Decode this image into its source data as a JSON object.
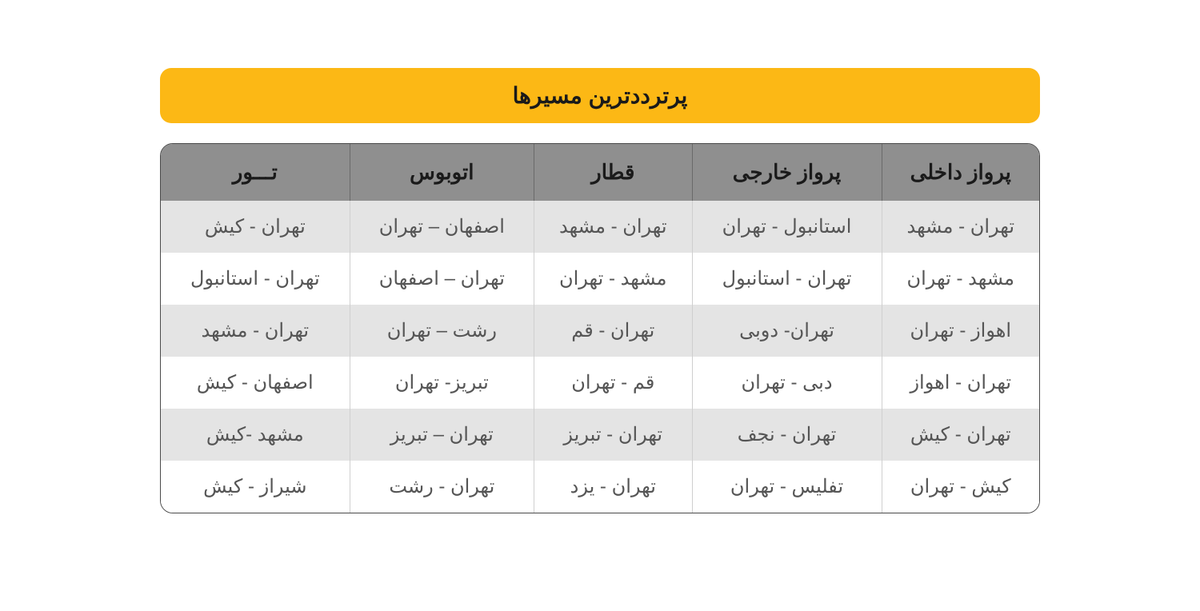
{
  "title": "پرترددترین مسیرها",
  "table": {
    "columns": [
      "پرواز داخلی",
      "پرواز خارجی",
      "قطار",
      "اتوبوس",
      "تـــور"
    ],
    "rows": [
      [
        "تهران - مشهد",
        "استانبول - تهران",
        "تهران - مشهد",
        "اصفهان – تهران",
        "تهران - کیش"
      ],
      [
        "مشهد - تهران",
        "تهران - استانبول",
        "مشهد - تهران",
        "تهران – اصفهان",
        "تهران - استانبول"
      ],
      [
        "اهواز - تهران",
        "تهران- دوبی",
        "تهران - قم",
        "رشت – تهران",
        "تهران - مشهد"
      ],
      [
        "تهران - اهواز",
        "دبی - تهران",
        "قم - تهران",
        "تبریز- تهران",
        "اصفهان - کیش"
      ],
      [
        "تهران - کیش",
        "تهران - نجف",
        "تهران - تبریز",
        "تهران – تبریز",
        "مشهد -کیش"
      ],
      [
        "کیش - تهران",
        "تفلیس - تهران",
        "تهران - یزد",
        "تهران - رشت",
        "شیراز - کیش"
      ]
    ],
    "header_bg": "#8f8f8f",
    "row_bg": "#ffffff",
    "alt_row_bg": "#e4e4e4",
    "border_color": "#4a4a4a",
    "text_color": "#555555",
    "title_bg": "#fcb815",
    "header_fontsize": 26,
    "cell_fontsize": 24,
    "title_fontsize": 28
  }
}
